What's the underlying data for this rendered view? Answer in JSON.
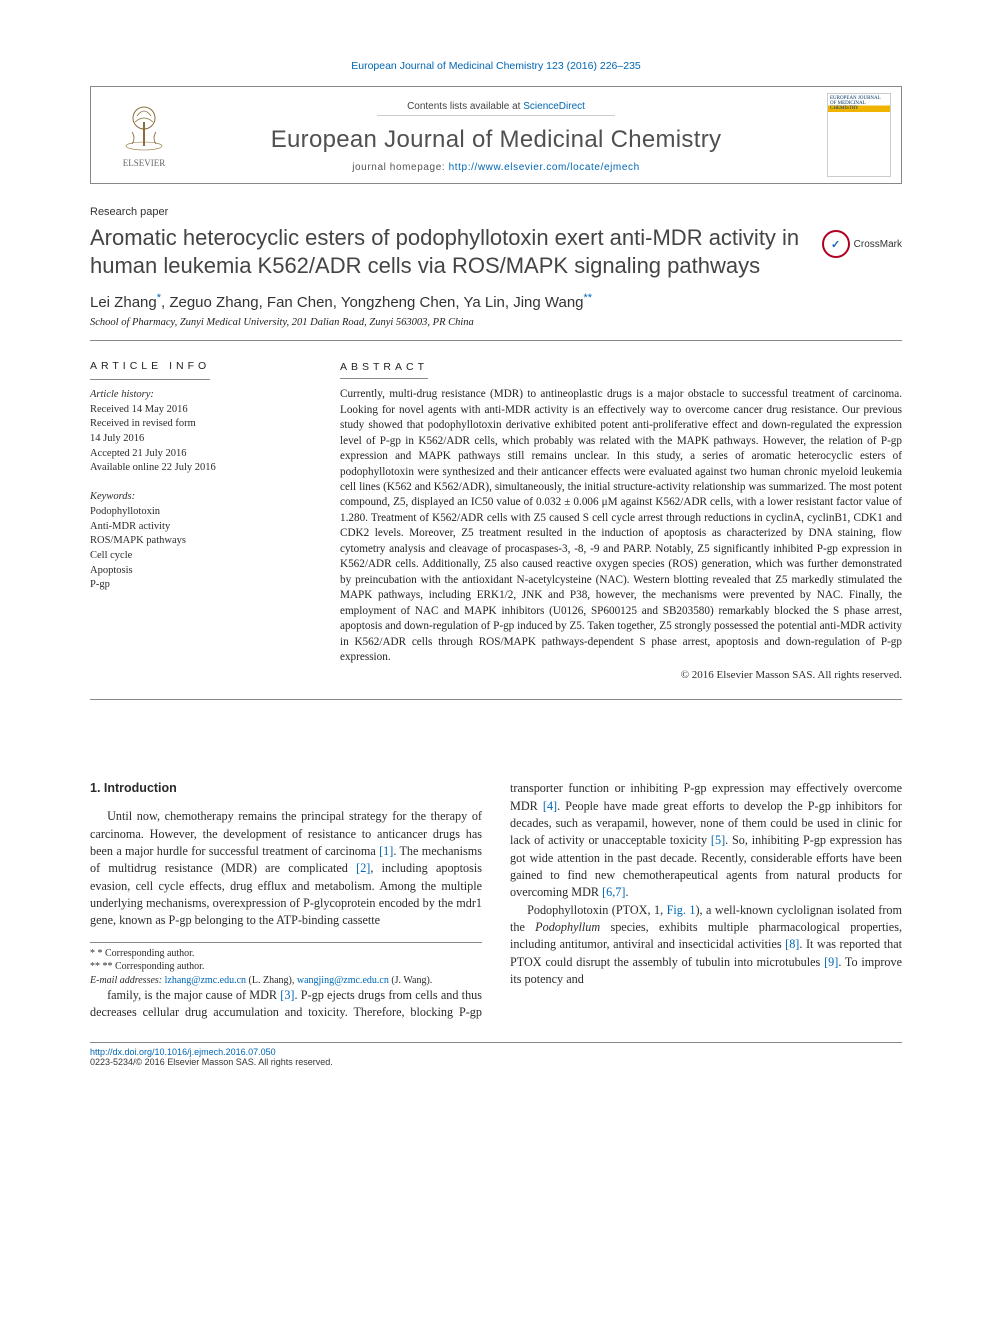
{
  "running_head": "European Journal of Medicinal Chemistry 123 (2016) 226–235",
  "masthead": {
    "publisher": "ELSEVIER",
    "contents_prefix": "Contents lists available at ",
    "contents_link": "ScienceDirect",
    "journal_name": "European Journal of Medicinal Chemistry",
    "homepage_label": "journal homepage: ",
    "homepage_url": "http://www.elsevier.com/locate/ejmech",
    "cover_text": "EUROPEAN JOURNAL OF MEDICINAL CHEMISTRY"
  },
  "article_type": "Research paper",
  "title": "Aromatic heterocyclic esters of podophyllotoxin exert anti-MDR activity in human leukemia K562/ADR cells via ROS/MAPK signaling pathways",
  "crossmark": "CrossMark",
  "authors_html": "Lei Zhang<span class='corr'>*</span>, Zeguo Zhang, Fan Chen, Yongzheng Chen, Ya Lin, Jing Wang<span class='corr'>**</span>",
  "affiliation": "School of Pharmacy, Zunyi Medical University, 201 Dalian Road, Zunyi 563003, PR China",
  "info": {
    "label": "ARTICLE INFO",
    "history_label": "Article history:",
    "history": [
      "Received 14 May 2016",
      "Received in revised form",
      "14 July 2016",
      "Accepted 21 July 2016",
      "Available online 22 July 2016"
    ],
    "keywords_label": "Keywords:",
    "keywords": [
      "Podophyllotoxin",
      "Anti-MDR activity",
      "ROS/MAPK pathways",
      "Cell cycle",
      "Apoptosis",
      "P-gp"
    ]
  },
  "abstract": {
    "label": "ABSTRACT",
    "text": "Currently, multi-drug resistance (MDR) to antineoplastic drugs is a major obstacle to successful treatment of carcinoma. Looking for novel agents with anti-MDR activity is an effectively way to overcome cancer drug resistance. Our previous study showed that podophyllotoxin derivative exhibited potent anti-proliferative effect and down-regulated the expression level of P-gp in K562/ADR cells, which probably was related with the MAPK pathways. However, the relation of P-gp expression and MAPK pathways still remains unclear. In this study, a series of aromatic heterocyclic esters of podophyllotoxin were synthesized and their anticancer effects were evaluated against two human chronic myeloid leukemia cell lines (K562 and K562/ADR), simultaneously, the initial structure-activity relationship was summarized. The most potent compound, Z5, displayed an IC50 value of 0.032 ± 0.006 μM against K562/ADR cells, with a lower resistant factor value of 1.280. Treatment of K562/ADR cells with Z5 caused S cell cycle arrest through reductions in cyclinA, cyclinB1, CDK1 and CDK2 levels. Moreover, Z5 treatment resulted in the induction of apoptosis as characterized by DNA staining, flow cytometry analysis and cleavage of procaspases-3, -8, -9 and PARP. Notably, Z5 significantly inhibited P-gp expression in K562/ADR cells. Additionally, Z5 also caused reactive oxygen species (ROS) generation, which was further demonstrated by preincubation with the antioxidant N-acetylcysteine (NAC). Western blotting revealed that Z5 markedly stimulated the MAPK pathways, including ERK1/2, JNK and P38, however, the mechanisms were prevented by NAC. Finally, the employment of NAC and MAPK inhibitors (U0126, SP600125 and SB203580) remarkably blocked the S phase arrest, apoptosis and down-regulation of P-gp induced by Z5. Taken together, Z5 strongly possessed the potential anti-MDR activity in K562/ADR cells through ROS/MAPK pathways-dependent S phase arrest, apoptosis and down-regulation of P-gp expression.",
    "copyright": "© 2016 Elsevier Masson SAS. All rights reserved."
  },
  "body": {
    "heading": "1. Introduction",
    "p1": "Until now, chemotherapy remains the principal strategy for the therapy of carcinoma. However, the development of resistance to anticancer drugs has been a major hurdle for successful treatment of carcinoma [1]. The mechanisms of multidrug resistance (MDR) are complicated [2], including apoptosis evasion, cell cycle effects, drug efflux and metabolism. Among the multiple underlying mechanisms, overexpression of P-glycoprotein encoded by the mdr1 gene, known as P-gp belonging to the ATP-binding cassette",
    "p2": "family, is the major cause of MDR [3]. P-gp ejects drugs from cells and thus decreases cellular drug accumulation and toxicity. Therefore, blocking P-gp transporter function or inhibiting P-gp expression may effectively overcome MDR [4]. People have made great efforts to develop the P-gp inhibitors for decades, such as verapamil, however, none of them could be used in clinic for lack of activity or unacceptable toxicity [5]. So, inhibiting P-gp expression has got wide attention in the past decade. Recently, considerable efforts have been gained to find new chemotherapeutical agents from natural products for overcoming MDR [6,7].",
    "p3": "Podophyllotoxin (PTOX, 1, Fig. 1), a well-known cyclolignan isolated from the Podophyllum species, exhibits multiple pharmacological properties, including antitumor, antiviral and insecticidal activities [8]. It was reported that PTOX could disrupt the assembly of tubulin into microtubules [9]. To improve its potency and"
  },
  "footnotes": {
    "corr1_label": "* Corresponding author.",
    "corr2_label": "** Corresponding author.",
    "email_label": "E-mail addresses:",
    "email1": "lzhang@zmc.edu.cn",
    "email1_name": "(L. Zhang),",
    "email2": "wangjing@zmc.edu.cn",
    "email2_name": "(J. Wang)."
  },
  "page_foot": {
    "doi": "http://dx.doi.org/10.1016/j.ejmech.2016.07.050",
    "issn_line": "0223-5234/© 2016 Elsevier Masson SAS. All rights reserved."
  },
  "colors": {
    "link": "#0066b3",
    "text": "#2b2b2b",
    "rule": "#888888"
  }
}
